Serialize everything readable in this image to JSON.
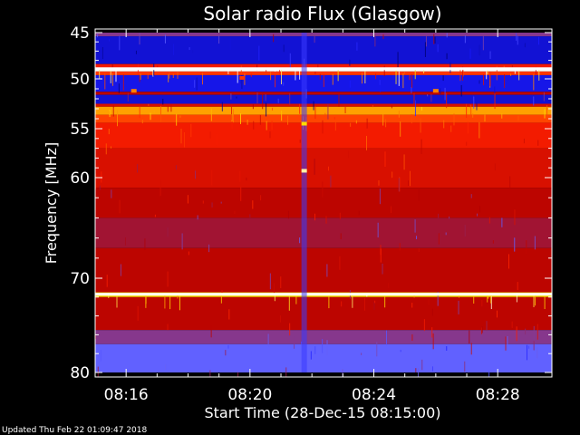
{
  "chart_data": {
    "type": "heatmap",
    "title": "Solar radio Flux (Glasgow)",
    "ylabel": "Frequency [MHz]",
    "xlabel": "Start Time (28-Dec-15 08:15:00)",
    "y_ticks": [
      {
        "value": 45,
        "label": "45"
      },
      {
        "value": 50,
        "label": "50"
      },
      {
        "value": 55,
        "label": "55"
      },
      {
        "value": 60,
        "label": "60"
      },
      {
        "value": 70,
        "label": "70"
      },
      {
        "value": 80,
        "label": "80"
      }
    ],
    "y_minor_ticks": [
      46,
      47,
      48,
      49,
      51,
      52,
      53,
      54,
      56,
      57,
      58,
      59,
      62,
      64,
      66,
      68,
      72,
      74,
      76,
      78
    ],
    "x_ticks": [
      {
        "value": "08:16",
        "label": "08:16"
      },
      {
        "value": "08:20",
        "label": "08:20"
      },
      {
        "value": "08:24",
        "label": "08:24"
      },
      {
        "value": "08:28",
        "label": "08:28"
      }
    ],
    "x_minor_ticks": [
      "08:17",
      "08:18",
      "08:19",
      "08:21",
      "08:22",
      "08:23",
      "08:25",
      "08:26",
      "08:27"
    ],
    "xlim": [
      "08:15:00",
      "08:29:45"
    ],
    "ylim": [
      45,
      80
    ],
    "colormap": [
      "#00006e",
      "#1a1aff",
      "#6464ff",
      "#b00000",
      "#ff2000",
      "#ff8c00",
      "#ffe000",
      "#ffffff"
    ],
    "frequency_bands": [
      {
        "from": 45,
        "to": 45.4,
        "level": 0.35
      },
      {
        "from": 45.4,
        "to": 48.4,
        "level": 0.1
      },
      {
        "from": 48.4,
        "to": 48.8,
        "level": 0.55
      },
      {
        "from": 48.8,
        "to": 49.2,
        "level": 1.0
      },
      {
        "from": 49.2,
        "to": 49.6,
        "level": 0.6
      },
      {
        "from": 49.6,
        "to": 51.3,
        "level": 0.12
      },
      {
        "from": 51.3,
        "to": 51.6,
        "level": 0.45
      },
      {
        "from": 51.6,
        "to": 52.5,
        "level": 0.1
      },
      {
        "from": 52.5,
        "to": 52.8,
        "level": 0.5
      },
      {
        "from": 52.8,
        "to": 53.6,
        "level": 0.75
      },
      {
        "from": 53.6,
        "to": 54.4,
        "level": 0.62
      },
      {
        "from": 54.4,
        "to": 57,
        "level": 0.55
      },
      {
        "from": 57,
        "to": 61,
        "level": 0.5
      },
      {
        "from": 61,
        "to": 64,
        "level": 0.45
      },
      {
        "from": 64,
        "to": 67,
        "level": 0.4
      },
      {
        "from": 67,
        "to": 71.5,
        "level": 0.45
      },
      {
        "from": 71.5,
        "to": 72,
        "level": 0.85
      },
      {
        "from": 72,
        "to": 75.5,
        "level": 0.45
      },
      {
        "from": 75.5,
        "to": 77,
        "level": 0.35
      },
      {
        "from": 77,
        "to": 80,
        "level": 0.28
      }
    ],
    "bright_lines_mhz": [
      48.9,
      71.7
    ],
    "features": [
      {
        "time": "08:21:45",
        "kind": "vertical-burst",
        "freq_from": 45,
        "freq_to": 80
      },
      {
        "time": "08:21:45",
        "kind": "spot",
        "freq": 54.5,
        "level": 0.85
      },
      {
        "time": "08:21:45",
        "kind": "spot",
        "freq": 59.3,
        "level": 0.95
      },
      {
        "time": "08:16:15",
        "kind": "spot",
        "freq": 51.2,
        "level": 0.7
      },
      {
        "time": "08:26:00",
        "kind": "spot",
        "freq": 51.2,
        "level": 0.7
      },
      {
        "time": "08:19:45",
        "kind": "spot",
        "freq": 49.9,
        "level": 0.6
      }
    ],
    "legend": "none",
    "grid": false
  },
  "footer": {
    "updated": "Updated Thu Feb 22 01:09:47 2018"
  }
}
